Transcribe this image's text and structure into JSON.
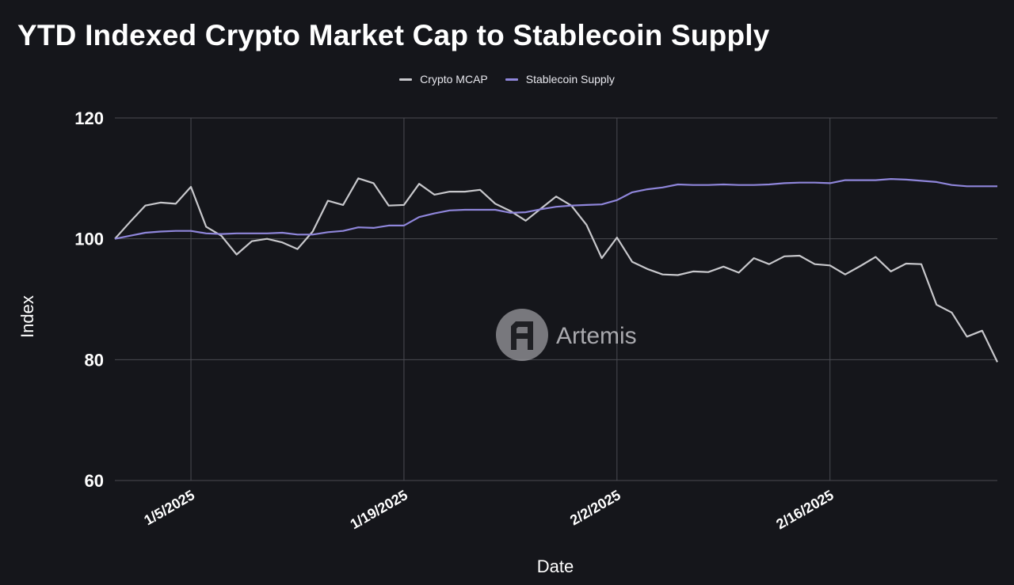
{
  "chart_data": {
    "type": "line",
    "title": "YTD Indexed Crypto Market Cap to Stablecoin Supply",
    "xlabel": "Date",
    "ylabel": "Index",
    "ylim": [
      60,
      120
    ],
    "yticks": [
      60,
      80,
      100,
      120
    ],
    "x_start_date": "12/31/2024",
    "x_end_date": "2/28/2025",
    "xtick_labels": [
      "1/5/2025",
      "1/19/2025",
      "2/2/2025",
      "2/16/2025"
    ],
    "xtick_day_offsets": [
      5,
      19,
      33,
      47
    ],
    "grid": true,
    "legend_position": "top-center",
    "watermark": "Artemis",
    "series": [
      {
        "name": "Crypto MCAP",
        "color": "#c8c8cc",
        "values": [
          100,
          102.8,
          105.5,
          106,
          105.8,
          108.6,
          102,
          100.5,
          97.4,
          99.6,
          100,
          99.4,
          98.3,
          101.2,
          106.3,
          105.6,
          110,
          109.2,
          105.5,
          105.6,
          109.1,
          107.3,
          107.8,
          107.8,
          108.1,
          105.8,
          104.6,
          103,
          105,
          107,
          105.5,
          102.3,
          96.8,
          100.2,
          96.2,
          95,
          94.1,
          94,
          94.6,
          94.5,
          95.4,
          94.4,
          96.8,
          95.8,
          97.1,
          97.2,
          95.8,
          95.6,
          94.1,
          95.5,
          97,
          94.6,
          95.9,
          95.8,
          89.1,
          87.8,
          83.8,
          84.8,
          79.6
        ]
      },
      {
        "name": "Stablecoin Supply",
        "color": "#8f86db",
        "values": [
          100,
          100.5,
          101,
          101.2,
          101.3,
          101.3,
          100.9,
          100.8,
          100.9,
          100.9,
          100.9,
          101,
          100.7,
          100.7,
          101.1,
          101.3,
          101.9,
          101.8,
          102.2,
          102.2,
          103.6,
          104.2,
          104.7,
          104.8,
          104.8,
          104.8,
          104.3,
          104.4,
          104.9,
          105.3,
          105.5,
          105.6,
          105.7,
          106.4,
          107.7,
          108.2,
          108.5,
          109,
          108.9,
          108.9,
          109,
          108.9,
          108.9,
          109,
          109.2,
          109.3,
          109.3,
          109.2,
          109.7,
          109.7,
          109.7,
          109.9,
          109.8,
          109.6,
          109.4,
          108.9,
          108.7,
          108.7,
          108.7
        ]
      }
    ]
  }
}
